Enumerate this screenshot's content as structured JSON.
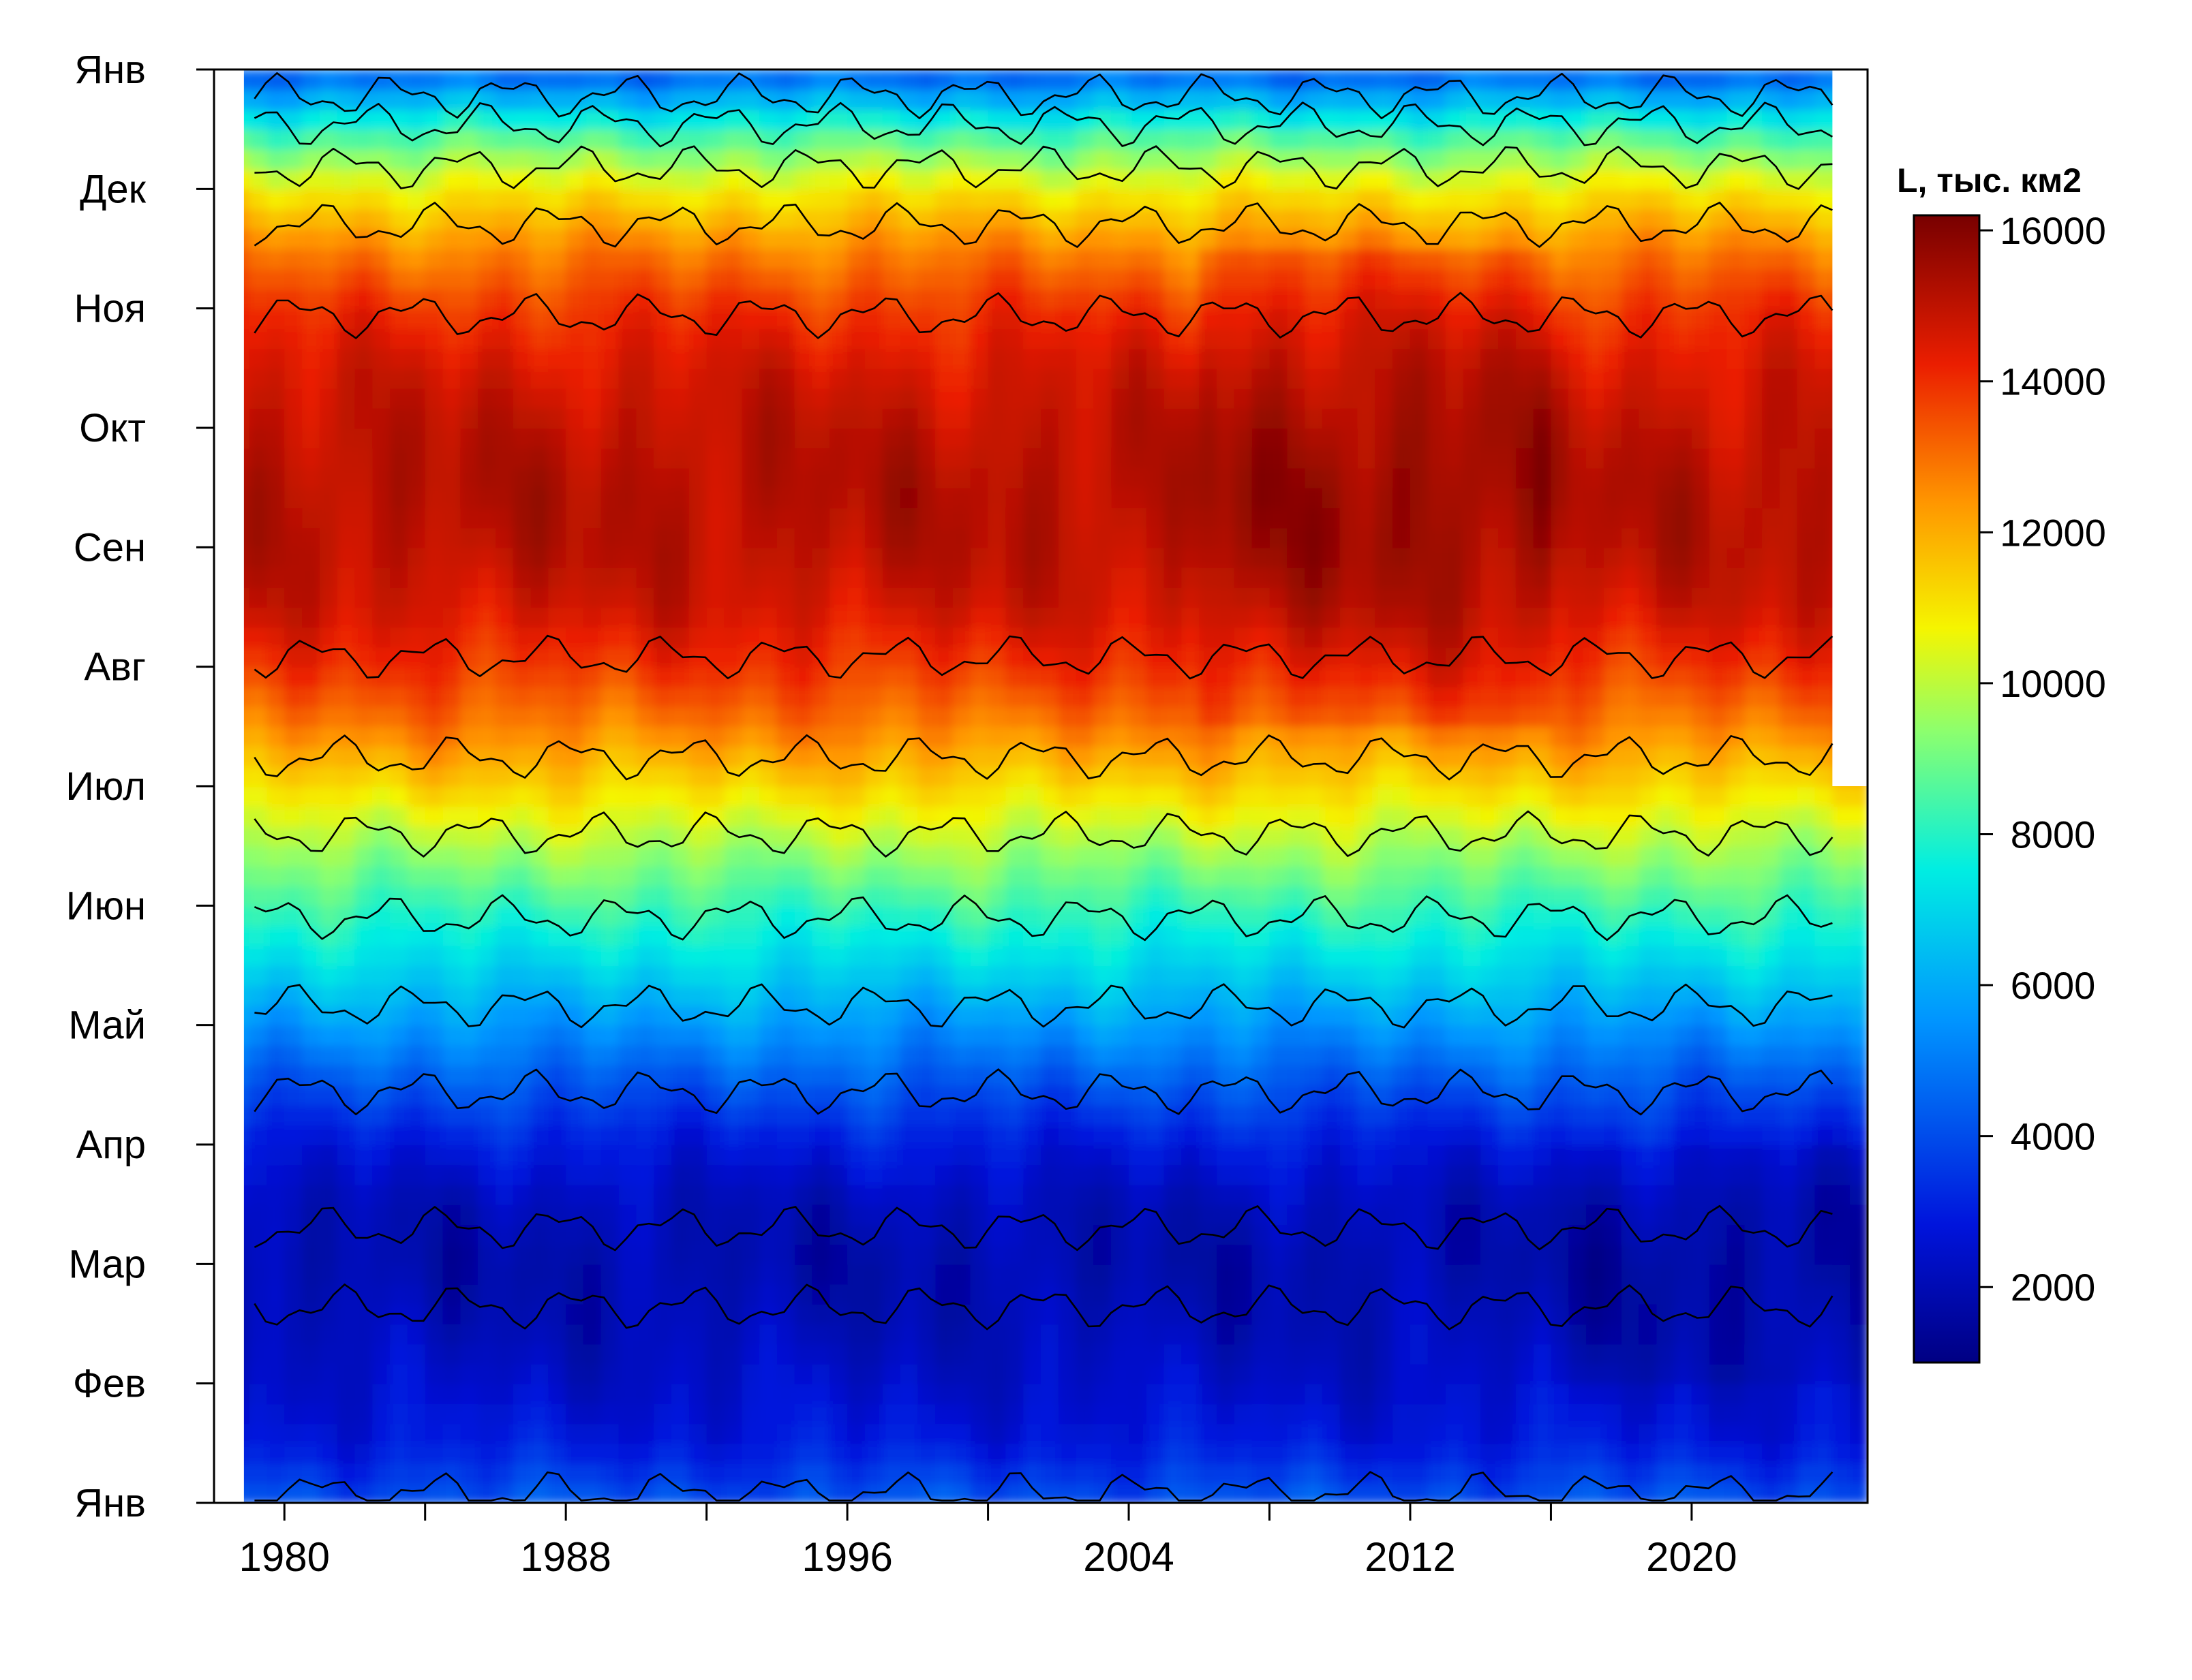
{
  "chart_data": {
    "type": "heatmap",
    "title": "",
    "xlabel": "",
    "ylabel": "",
    "x_range": [
      1978.0,
      2025.0
    ],
    "x_ticks": [
      1980,
      1988,
      1996,
      2004,
      2012,
      2020
    ],
    "x_minor_ticks": [
      1980,
      1984,
      1988,
      1992,
      1996,
      2000,
      2004,
      2008,
      2012,
      2016,
      2020
    ],
    "y_ticks": [
      {
        "label": "Янв",
        "month": 0
      },
      {
        "label": "Фев",
        "month": 1
      },
      {
        "label": "Мар",
        "month": 2
      },
      {
        "label": "Апр",
        "month": 3
      },
      {
        "label": "Май",
        "month": 4
      },
      {
        "label": "Июн",
        "month": 5
      },
      {
        "label": "Июл",
        "month": 6
      },
      {
        "label": "Авг",
        "month": 7
      },
      {
        "label": "Сен",
        "month": 8
      },
      {
        "label": "Окт",
        "month": 9
      },
      {
        "label": "Ноя",
        "month": 10
      },
      {
        "label": "Дек",
        "month": 11
      },
      {
        "label": "Янв",
        "month": 12
      }
    ],
    "data_start": {
      "year": 1978.85,
      "month": 10
    },
    "data_end": {
      "year": 2024.0,
      "month": 6
    },
    "colorbar": {
      "title": "L, тыс. км2",
      "range": [
        1000,
        16200
      ],
      "ticks": [
        2000,
        4000,
        6000,
        8000,
        10000,
        12000,
        14000,
        16000
      ]
    },
    "contour_levels": [
      2000,
      4000,
      6000,
      8000,
      10000,
      12000,
      14000
    ],
    "monthly_climatology": [
      {
        "month": 0.0,
        "value": 4200
      },
      {
        "month": 0.5,
        "value": 2900
      },
      {
        "month": 1.0,
        "value": 2400
      },
      {
        "month": 1.5,
        "value": 2050
      },
      {
        "month": 2.0,
        "value": 1850
      },
      {
        "month": 2.5,
        "value": 2100
      },
      {
        "month": 3.0,
        "value": 2900
      },
      {
        "month": 3.5,
        "value": 4200
      },
      {
        "month": 4.0,
        "value": 5600
      },
      {
        "month": 4.5,
        "value": 7000
      },
      {
        "month": 5.0,
        "value": 8300
      },
      {
        "month": 5.5,
        "value": 9700
      },
      {
        "month": 6.0,
        "value": 11300
      },
      {
        "month": 6.5,
        "value": 12800
      },
      {
        "month": 7.0,
        "value": 13900
      },
      {
        "month": 7.5,
        "value": 14700
      },
      {
        "month": 8.0,
        "value": 15100
      },
      {
        "month": 8.5,
        "value": 15200
      },
      {
        "month": 9.0,
        "value": 15000
      },
      {
        "month": 9.5,
        "value": 14600
      },
      {
        "month": 10.0,
        "value": 13900
      },
      {
        "month": 10.5,
        "value": 12700
      },
      {
        "month": 11.0,
        "value": 10900
      },
      {
        "month": 11.5,
        "value": 8200
      },
      {
        "month": 12.0,
        "value": 4200
      }
    ],
    "grid": false,
    "legend": "right"
  }
}
